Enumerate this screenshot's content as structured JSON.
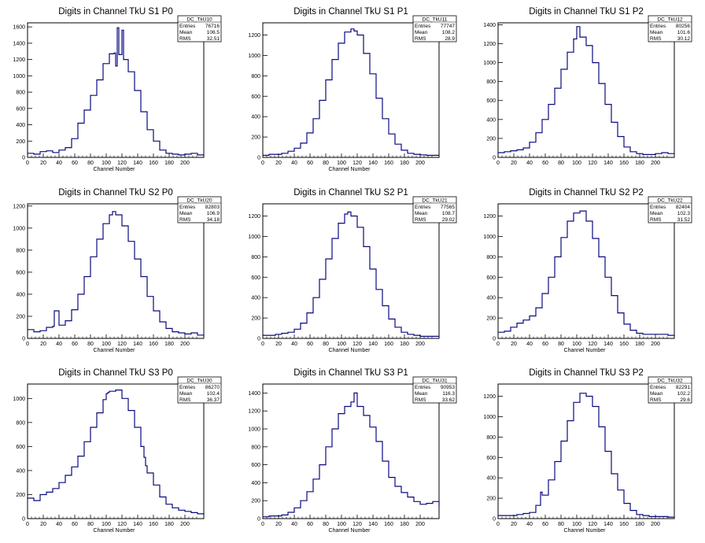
{
  "line_color": "#0a0a80",
  "axis_color": "#000000",
  "chart_data": [
    {
      "type": "histogram",
      "title": "Digits in Channel TkU S1 P0",
      "xlabel": "Channel Number",
      "xlim": [
        0,
        224
      ],
      "ylim": [
        0,
        1650
      ],
      "xticks": [
        0,
        20,
        40,
        60,
        80,
        100,
        120,
        140,
        160,
        180,
        200
      ],
      "yticks": [
        0,
        200,
        400,
        600,
        800,
        1000,
        1200,
        1400,
        1600
      ],
      "stats": {
        "name": "DC_TkU10",
        "entries": "76716",
        "mean": "106.5",
        "rms": "32.51"
      },
      "x": [
        0,
        8,
        16,
        24,
        32,
        40,
        48,
        56,
        64,
        72,
        80,
        88,
        96,
        104,
        110,
        112,
        114,
        116,
        120,
        122,
        128,
        136,
        144,
        152,
        160,
        168,
        176,
        184,
        192,
        200,
        208,
        216,
        224
      ],
      "values": [
        50,
        40,
        70,
        80,
        60,
        90,
        120,
        230,
        420,
        580,
        760,
        950,
        1150,
        1270,
        1280,
        1120,
        1590,
        1260,
        1560,
        1200,
        1050,
        820,
        560,
        340,
        200,
        90,
        50,
        40,
        30,
        40,
        50,
        30,
        20
      ]
    },
    {
      "type": "histogram",
      "title": "Digits in Channel TkU S1 P1",
      "xlabel": "Channel Number",
      "xlim": [
        0,
        224
      ],
      "ylim": [
        0,
        1320
      ],
      "xticks": [
        0,
        20,
        40,
        60,
        80,
        100,
        120,
        140,
        160,
        180,
        200
      ],
      "yticks": [
        0,
        200,
        400,
        600,
        800,
        1000,
        1200
      ],
      "stats": {
        "name": "DC_TkU11",
        "entries": "77747",
        "mean": "108.2",
        "rms": "28.9"
      },
      "x": [
        0,
        8,
        16,
        24,
        32,
        40,
        48,
        56,
        64,
        72,
        80,
        88,
        96,
        104,
        112,
        116,
        120,
        128,
        136,
        144,
        152,
        160,
        168,
        176,
        184,
        192,
        200,
        208,
        216,
        224
      ],
      "values": [
        20,
        30,
        30,
        40,
        60,
        90,
        140,
        240,
        380,
        560,
        760,
        960,
        1120,
        1230,
        1260,
        1240,
        1200,
        1020,
        820,
        580,
        380,
        230,
        130,
        70,
        40,
        30,
        25,
        20,
        20,
        15
      ]
    },
    {
      "type": "histogram",
      "title": "Digits in Channel TkU S1 P2",
      "xlabel": "",
      "xlim": [
        0,
        224
      ],
      "ylim": [
        0,
        1420
      ],
      "xticks": [
        0,
        20,
        40,
        60,
        80,
        100,
        120,
        140,
        160,
        180,
        200
      ],
      "yticks": [
        0,
        200,
        400,
        600,
        800,
        1000,
        1200,
        1400
      ],
      "stats": {
        "name": "DC_TkU12",
        "entries": "80256",
        "mean": "101.6",
        "rms": "30.12"
      },
      "x": [
        0,
        8,
        16,
        24,
        32,
        40,
        48,
        56,
        64,
        72,
        80,
        88,
        96,
        100,
        104,
        112,
        120,
        128,
        136,
        144,
        152,
        160,
        168,
        176,
        184,
        192,
        200,
        208,
        216,
        224
      ],
      "values": [
        50,
        60,
        70,
        80,
        100,
        160,
        260,
        400,
        560,
        730,
        930,
        1110,
        1250,
        1380,
        1270,
        1180,
        1000,
        780,
        560,
        370,
        220,
        110,
        60,
        40,
        30,
        30,
        40,
        50,
        40,
        30
      ]
    },
    {
      "type": "histogram",
      "title": "Digits in Channel TkU S2 P0",
      "xlabel": "Channel Number",
      "xlim": [
        0,
        224
      ],
      "ylim": [
        0,
        1220
      ],
      "xticks": [
        0,
        20,
        40,
        60,
        80,
        100,
        120,
        140,
        160,
        180,
        200
      ],
      "yticks": [
        0,
        200,
        400,
        600,
        800,
        1000,
        1200
      ],
      "stats": {
        "name": "DC_TkU20",
        "entries": "82803",
        "mean": "106.9",
        "rms": "34.18"
      },
      "x": [
        0,
        8,
        16,
        24,
        32,
        34,
        40,
        48,
        56,
        64,
        72,
        80,
        88,
        96,
        104,
        108,
        112,
        120,
        128,
        136,
        144,
        152,
        160,
        168,
        176,
        184,
        192,
        200,
        208,
        216,
        224
      ],
      "values": [
        80,
        60,
        70,
        100,
        110,
        250,
        120,
        160,
        260,
        400,
        560,
        740,
        900,
        1040,
        1120,
        1150,
        1120,
        1020,
        880,
        720,
        560,
        380,
        250,
        150,
        90,
        60,
        50,
        40,
        50,
        30,
        20
      ]
    },
    {
      "type": "histogram",
      "title": "Digits in Channel TkU S2 P1",
      "xlabel": "Channel Number",
      "xlim": [
        0,
        224
      ],
      "ylim": [
        0,
        1320
      ],
      "xticks": [
        0,
        20,
        40,
        60,
        80,
        100,
        120,
        140,
        160,
        180,
        200
      ],
      "yticks": [
        0,
        200,
        400,
        600,
        800,
        1000,
        1200
      ],
      "stats": {
        "name": "DC_TkU21",
        "entries": "77565",
        "mean": "108.7",
        "rms": "29.02"
      },
      "x": [
        0,
        8,
        16,
        24,
        32,
        40,
        48,
        56,
        64,
        72,
        80,
        88,
        96,
        104,
        108,
        112,
        120,
        128,
        136,
        144,
        152,
        160,
        168,
        176,
        184,
        192,
        200,
        208,
        216,
        224
      ],
      "values": [
        30,
        30,
        40,
        50,
        60,
        90,
        150,
        250,
        400,
        580,
        780,
        980,
        1130,
        1220,
        1240,
        1200,
        1090,
        900,
        680,
        480,
        320,
        190,
        110,
        60,
        40,
        30,
        20,
        20,
        20,
        15
      ]
    },
    {
      "type": "histogram",
      "title": "Digits in Channel TkU S2 P2",
      "xlabel": "Channel Number",
      "xlim": [
        0,
        224
      ],
      "ylim": [
        0,
        1320
      ],
      "xticks": [
        0,
        20,
        40,
        60,
        80,
        100,
        120,
        140,
        160,
        180,
        200
      ],
      "yticks": [
        0,
        200,
        400,
        600,
        800,
        1000,
        1200
      ],
      "stats": {
        "name": "DC_TkU22",
        "entries": "82404",
        "mean": "102.3",
        "rms": "31.52"
      },
      "x": [
        0,
        8,
        16,
        24,
        32,
        40,
        48,
        56,
        64,
        72,
        80,
        88,
        96,
        104,
        112,
        120,
        128,
        136,
        144,
        152,
        160,
        168,
        176,
        184,
        192,
        200,
        208,
        216,
        224
      ],
      "values": [
        60,
        70,
        110,
        150,
        180,
        220,
        300,
        440,
        600,
        800,
        990,
        1150,
        1230,
        1250,
        1150,
        980,
        800,
        600,
        420,
        250,
        140,
        80,
        50,
        40,
        40,
        40,
        40,
        30,
        20
      ]
    },
    {
      "type": "histogram",
      "title": "Digits in Channel TkU S3 P0",
      "xlabel": "Channel Number",
      "xlim": [
        0,
        224
      ],
      "ylim": [
        0,
        1120
      ],
      "xticks": [
        0,
        20,
        40,
        60,
        80,
        100,
        120,
        140,
        160,
        180,
        200
      ],
      "yticks": [
        0,
        200,
        400,
        600,
        800,
        1000
      ],
      "stats": {
        "name": "DC_TkU30",
        "entries": "86270",
        "mean": "102.4",
        "rms": "36.37"
      },
      "x": [
        0,
        8,
        16,
        24,
        32,
        40,
        48,
        56,
        64,
        72,
        80,
        88,
        96,
        100,
        102,
        104,
        112,
        120,
        128,
        136,
        144,
        148,
        150,
        152,
        160,
        168,
        176,
        184,
        192,
        200,
        208,
        216,
        224
      ],
      "values": [
        170,
        150,
        200,
        220,
        250,
        300,
        360,
        430,
        520,
        640,
        760,
        880,
        990,
        1040,
        1050,
        1060,
        1070,
        1000,
        900,
        760,
        600,
        510,
        440,
        380,
        280,
        180,
        120,
        90,
        70,
        60,
        50,
        40,
        30
      ]
    },
    {
      "type": "histogram",
      "title": "Digits in Channel TkU S3 P1",
      "xlabel": "Channel Number",
      "xlim": [
        0,
        224
      ],
      "ylim": [
        0,
        1500
      ],
      "xticks": [
        0,
        20,
        40,
        60,
        80,
        100,
        120,
        140,
        160,
        180,
        200
      ],
      "yticks": [
        0,
        200,
        400,
        600,
        800,
        1000,
        1200,
        1400
      ],
      "stats": {
        "name": "DC_TkU31",
        "entries": "90953",
        "mean": "116.3",
        "rms": "33.62"
      },
      "x": [
        0,
        8,
        16,
        24,
        32,
        40,
        48,
        56,
        64,
        72,
        80,
        88,
        96,
        104,
        112,
        116,
        120,
        128,
        136,
        144,
        152,
        160,
        168,
        176,
        184,
        192,
        200,
        208,
        216,
        224
      ],
      "values": [
        20,
        30,
        30,
        40,
        70,
        120,
        200,
        300,
        440,
        600,
        800,
        1000,
        1170,
        1250,
        1300,
        1400,
        1250,
        1150,
        1020,
        860,
        640,
        460,
        360,
        290,
        240,
        190,
        160,
        170,
        190,
        130
      ]
    },
    {
      "type": "histogram",
      "title": "Digits in Channel TkU S3 P2",
      "xlabel": "Channel Number",
      "xlim": [
        0,
        224
      ],
      "ylim": [
        0,
        1320
      ],
      "xticks": [
        0,
        20,
        40,
        60,
        80,
        100,
        120,
        140,
        160,
        180,
        200
      ],
      "yticks": [
        0,
        200,
        400,
        600,
        800,
        1000,
        1200
      ],
      "stats": {
        "name": "DC_TkU32",
        "entries": "82291",
        "mean": "102.2",
        "rms": "29.6"
      },
      "x": [
        0,
        8,
        16,
        24,
        32,
        40,
        48,
        54,
        56,
        64,
        72,
        80,
        88,
        96,
        104,
        112,
        120,
        128,
        136,
        144,
        152,
        160,
        168,
        176,
        184,
        192,
        200,
        208,
        216,
        224
      ],
      "values": [
        30,
        30,
        30,
        40,
        50,
        60,
        130,
        260,
        230,
        380,
        560,
        760,
        960,
        1140,
        1230,
        1200,
        1100,
        900,
        660,
        440,
        280,
        150,
        80,
        40,
        30,
        20,
        20,
        20,
        15,
        10
      ]
    }
  ],
  "stats_labels": {
    "entries": "Entries",
    "mean": "Mean",
    "rms": "RMS"
  }
}
